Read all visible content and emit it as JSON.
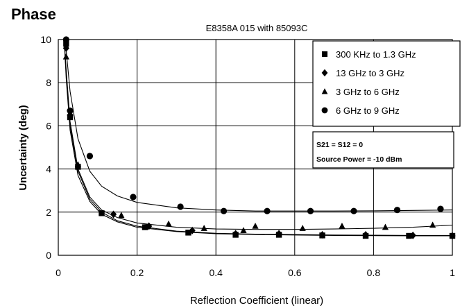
{
  "chart_data": {
    "type": "scatter",
    "heading": "Phase",
    "title": "E8358A 015 with 85093C",
    "xlabel": "Reflection Coefficient (linear)",
    "ylabel": "Uncertainty (deg)",
    "xlim": [
      0,
      1
    ],
    "ylim": [
      0,
      10
    ],
    "x_ticks": [
      "0",
      "0.2",
      "0.4",
      "0.6",
      "0.8",
      "1"
    ],
    "y_ticks": [
      "0",
      "2",
      "4",
      "6",
      "8",
      "10"
    ],
    "grid": true,
    "legend_position": "top-right",
    "annotation": [
      "S21 = S12 = 0",
      "Source Power = -10 dBm"
    ],
    "series": [
      {
        "name": "300 KHz to 1.3 GHz",
        "marker": "square",
        "points": [
          [
            0.02,
            9.8
          ],
          [
            0.03,
            6.4
          ],
          [
            0.05,
            4.1
          ],
          [
            0.11,
            1.95
          ],
          [
            0.22,
            1.3
          ],
          [
            0.33,
            1.05
          ],
          [
            0.45,
            0.95
          ],
          [
            0.56,
            0.95
          ],
          [
            0.67,
            0.92
          ],
          [
            0.78,
            0.9
          ],
          [
            0.89,
            0.9
          ],
          [
            1.0,
            0.9
          ]
        ],
        "curve": [
          [
            0.015,
            10
          ],
          [
            0.02,
            8.2
          ],
          [
            0.03,
            5.8
          ],
          [
            0.05,
            3.7
          ],
          [
            0.08,
            2.5
          ],
          [
            0.11,
            1.9
          ],
          [
            0.15,
            1.55
          ],
          [
            0.2,
            1.3
          ],
          [
            0.3,
            1.1
          ],
          [
            0.4,
            1.0
          ],
          [
            0.5,
            0.96
          ],
          [
            0.6,
            0.94
          ],
          [
            0.7,
            0.92
          ],
          [
            0.8,
            0.91
          ],
          [
            0.9,
            0.9
          ],
          [
            1.0,
            0.9
          ]
        ]
      },
      {
        "name": "13 GHz to 3 GHz",
        "marker": "diamond",
        "points": [
          [
            0.02,
            9.6
          ],
          [
            0.03,
            6.5
          ],
          [
            0.05,
            4.1
          ],
          [
            0.14,
            1.9
          ],
          [
            0.23,
            1.35
          ],
          [
            0.34,
            1.15
          ],
          [
            0.45,
            1.0
          ],
          [
            0.56,
            1.0
          ],
          [
            0.67,
            0.95
          ],
          [
            0.78,
            0.95
          ],
          [
            0.9,
            0.92
          ],
          [
            1.0,
            0.9
          ]
        ],
        "curve": [
          [
            0.015,
            10
          ],
          [
            0.02,
            8.4
          ],
          [
            0.03,
            6.0
          ],
          [
            0.05,
            3.9
          ],
          [
            0.08,
            2.6
          ],
          [
            0.11,
            2.0
          ],
          [
            0.15,
            1.6
          ],
          [
            0.2,
            1.35
          ],
          [
            0.3,
            1.12
          ],
          [
            0.4,
            1.02
          ],
          [
            0.5,
            0.98
          ],
          [
            0.6,
            0.96
          ],
          [
            0.7,
            0.94
          ],
          [
            0.8,
            0.93
          ],
          [
            0.9,
            0.92
          ],
          [
            1.0,
            0.92
          ]
        ]
      },
      {
        "name": "3 GHz to 6 GHz",
        "marker": "triangle",
        "points": [
          [
            0.02,
            9.2
          ],
          [
            0.03,
            6.6
          ],
          [
            0.05,
            4.2
          ],
          [
            0.16,
            1.85
          ],
          [
            0.28,
            1.45
          ],
          [
            0.37,
            1.25
          ],
          [
            0.47,
            1.15
          ],
          [
            0.5,
            1.35
          ],
          [
            0.62,
            1.25
          ],
          [
            0.72,
            1.35
          ],
          [
            0.83,
            1.3
          ],
          [
            0.95,
            1.4
          ]
        ],
        "curve": [
          [
            0.015,
            10
          ],
          [
            0.02,
            8.6
          ],
          [
            0.03,
            6.2
          ],
          [
            0.05,
            4.0
          ],
          [
            0.08,
            2.7
          ],
          [
            0.11,
            2.1
          ],
          [
            0.15,
            1.75
          ],
          [
            0.2,
            1.5
          ],
          [
            0.3,
            1.3
          ],
          [
            0.4,
            1.22
          ],
          [
            0.5,
            1.2
          ],
          [
            0.6,
            1.2
          ],
          [
            0.7,
            1.22
          ],
          [
            0.8,
            1.25
          ],
          [
            0.9,
            1.3
          ],
          [
            1.0,
            1.4
          ]
        ]
      },
      {
        "name": "6 GHz to 9 GHz",
        "marker": "circle",
        "points": [
          [
            0.02,
            10.0
          ],
          [
            0.03,
            6.7
          ],
          [
            0.08,
            4.6
          ],
          [
            0.19,
            2.7
          ],
          [
            0.31,
            2.25
          ],
          [
            0.42,
            2.05
          ],
          [
            0.53,
            2.05
          ],
          [
            0.64,
            2.05
          ],
          [
            0.75,
            2.05
          ],
          [
            0.86,
            2.1
          ],
          [
            0.97,
            2.15
          ]
        ],
        "curve": [
          [
            0.015,
            10
          ],
          [
            0.02,
            9.5
          ],
          [
            0.03,
            7.6
          ],
          [
            0.05,
            5.4
          ],
          [
            0.08,
            3.9
          ],
          [
            0.11,
            3.2
          ],
          [
            0.15,
            2.75
          ],
          [
            0.2,
            2.45
          ],
          [
            0.3,
            2.2
          ],
          [
            0.4,
            2.1
          ],
          [
            0.5,
            2.05
          ],
          [
            0.6,
            2.05
          ],
          [
            0.7,
            2.05
          ],
          [
            0.8,
            2.06
          ],
          [
            0.9,
            2.08
          ],
          [
            1.0,
            2.1
          ]
        ]
      }
    ]
  }
}
